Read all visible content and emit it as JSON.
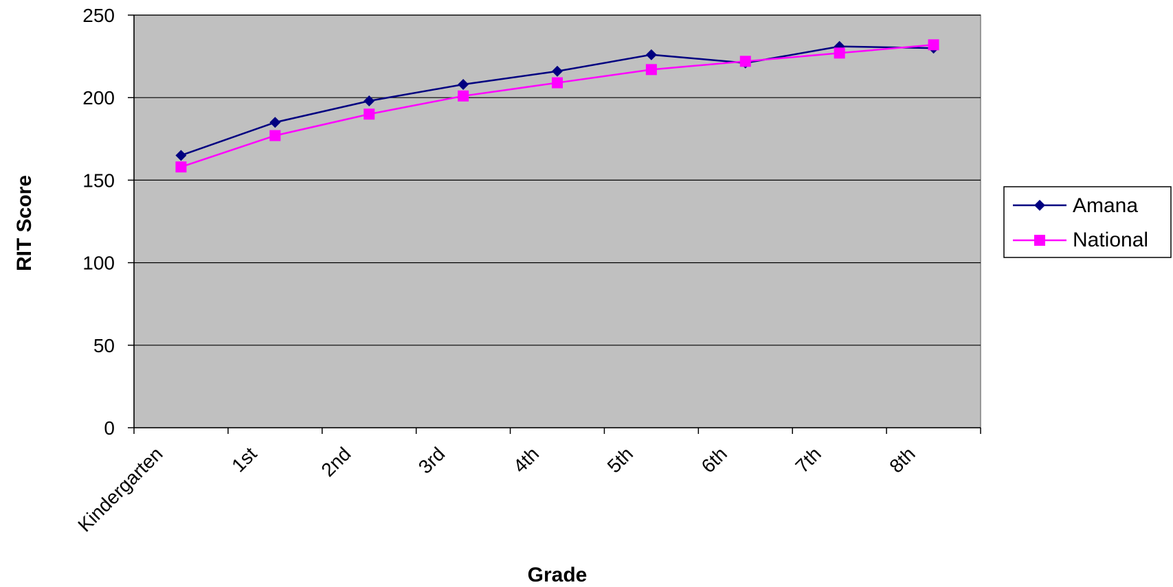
{
  "chart_data": {
    "type": "line",
    "title": "",
    "xlabel": "Grade",
    "ylabel": "RIT Score",
    "categories": [
      "Kindergarten",
      "1st",
      "2nd",
      "3rd",
      "4th",
      "5th",
      "6th",
      "7th",
      "8th"
    ],
    "series": [
      {
        "name": "Amana",
        "values": [
          165,
          185,
          198,
          208,
          216,
          226,
          221,
          231,
          230
        ],
        "color": "#000080",
        "marker": "diamond"
      },
      {
        "name": "National",
        "values": [
          158,
          177,
          190,
          201,
          209,
          217,
          222,
          227,
          232
        ],
        "color": "#FF00FF",
        "marker": "square"
      }
    ],
    "ylim": [
      0,
      250
    ],
    "yticks": [
      0,
      50,
      100,
      150,
      200,
      250
    ],
    "grid": true,
    "plot_background": "#C0C0C0",
    "legend_position": "right"
  }
}
